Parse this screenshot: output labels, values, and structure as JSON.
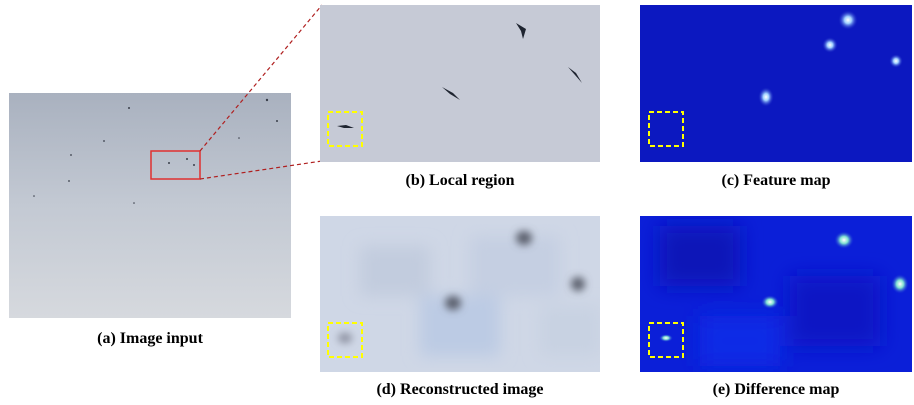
{
  "captions": {
    "a": "(a) Image input",
    "b": "(b) Local region",
    "c": "(c) Feature map",
    "d": "(d) Reconstructed image",
    "e": "(e) Difference map"
  },
  "colors": {
    "sky": "#c4ccd8",
    "local_bg": "#c6cad6",
    "feature_bg": "#0c18c0",
    "recon_bg": "#cfd7e6",
    "diff_bg": "#0b1fd8",
    "highlight_box": "#ffff00",
    "zoom_box": "#e03030"
  },
  "icons": {
    "bird": "bird-silhouette"
  }
}
